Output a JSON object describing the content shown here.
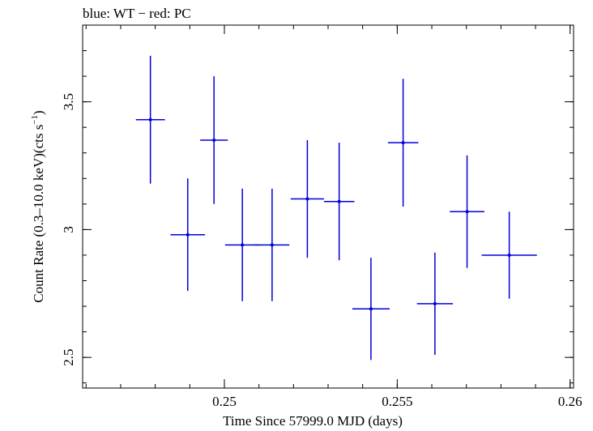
{
  "chart_data": {
    "type": "scatter",
    "title": "blue: WT − red: PC",
    "xlabel": "Time Since 57999.0 MJD (days)",
    "ylabel_main": "Count Rate (0.3–10.0 keV)(cts s",
    "ylabel_sup": "−1",
    "ylabel_close": ")",
    "xlim": [
      0.2459,
      0.2601
    ],
    "ylim": [
      2.38,
      3.8
    ],
    "x_ticks": [
      {
        "value": 0.25,
        "label": "0.25"
      },
      {
        "value": 0.255,
        "label": "0.255"
      },
      {
        "value": 0.26,
        "label": "0.26"
      }
    ],
    "y_ticks": [
      {
        "value": 2.5,
        "label": "2.5"
      },
      {
        "value": 3.0,
        "label": "3"
      },
      {
        "value": 3.5,
        "label": "3.5"
      }
    ],
    "x_minor_step": 0.001,
    "y_minor_step": 0.1,
    "series": [
      {
        "name": "WT",
        "color": "#0000dd",
        "points": [
          {
            "x": 0.24786,
            "xerr": 0.00042,
            "y": 3.43,
            "yerr_low": 0.25,
            "yerr_high": 0.25
          },
          {
            "x": 0.24894,
            "xerr": 0.0005,
            "y": 2.98,
            "yerr_low": 0.22,
            "yerr_high": 0.22
          },
          {
            "x": 0.2497,
            "xerr": 0.0004,
            "y": 3.35,
            "yerr_low": 0.25,
            "yerr_high": 0.25
          },
          {
            "x": 0.25052,
            "xerr": 0.0005,
            "y": 2.94,
            "yerr_low": 0.22,
            "yerr_high": 0.22
          },
          {
            "x": 0.25138,
            "xerr": 0.0005,
            "y": 2.94,
            "yerr_low": 0.22,
            "yerr_high": 0.22
          },
          {
            "x": 0.2524,
            "xerr": 0.00048,
            "y": 3.12,
            "yerr_low": 0.23,
            "yerr_high": 0.23
          },
          {
            "x": 0.25332,
            "xerr": 0.00044,
            "y": 3.11,
            "yerr_low": 0.23,
            "yerr_high": 0.23
          },
          {
            "x": 0.25424,
            "xerr": 0.00054,
            "y": 2.69,
            "yerr_low": 0.2,
            "yerr_high": 0.2
          },
          {
            "x": 0.25517,
            "xerr": 0.00044,
            "y": 3.34,
            "yerr_low": 0.25,
            "yerr_high": 0.25
          },
          {
            "x": 0.25609,
            "xerr": 0.00052,
            "y": 2.71,
            "yerr_low": 0.2,
            "yerr_high": 0.2
          },
          {
            "x": 0.25702,
            "xerr": 0.0005,
            "y": 3.07,
            "yerr_low": 0.22,
            "yerr_high": 0.22
          },
          {
            "x": 0.25824,
            "xerr": 0.0008,
            "y": 2.9,
            "yerr_low": 0.17,
            "yerr_high": 0.17
          }
        ]
      }
    ]
  }
}
